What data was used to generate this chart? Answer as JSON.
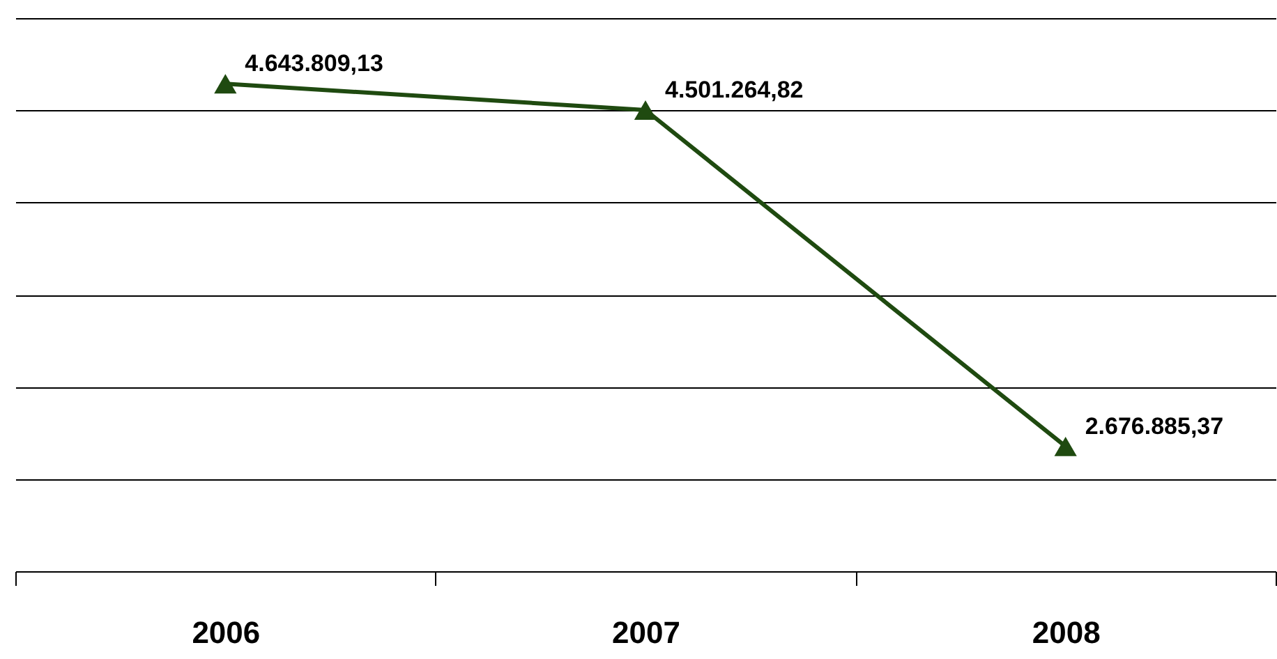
{
  "chart_data": {
    "type": "line",
    "categories": [
      "2006",
      "2007",
      "2008"
    ],
    "series": [
      {
        "color": "#1f4a10",
        "values": [
          4643809.13,
          4501264.82,
          2676885.37
        ],
        "value_labels": [
          "4.643.809,13",
          "4.501.264,82",
          "2.676.885,37"
        ]
      }
    ],
    "ylim": [
      2000000,
      5000000
    ],
    "yticks": [
      {
        "value": 2000000,
        "label": null
      },
      {
        "value": 2500000,
        "label": null
      },
      {
        "value": 3000000,
        "label": null
      },
      {
        "value": 3500000,
        "label": null
      },
      {
        "value": 4000000,
        "label": null
      },
      {
        "value": 4500000,
        "label": null
      },
      {
        "value": 5000000,
        "label": null
      }
    ],
    "grid": "y",
    "tick_labels": "x",
    "marker": "triangle",
    "line_style": "solid"
  }
}
